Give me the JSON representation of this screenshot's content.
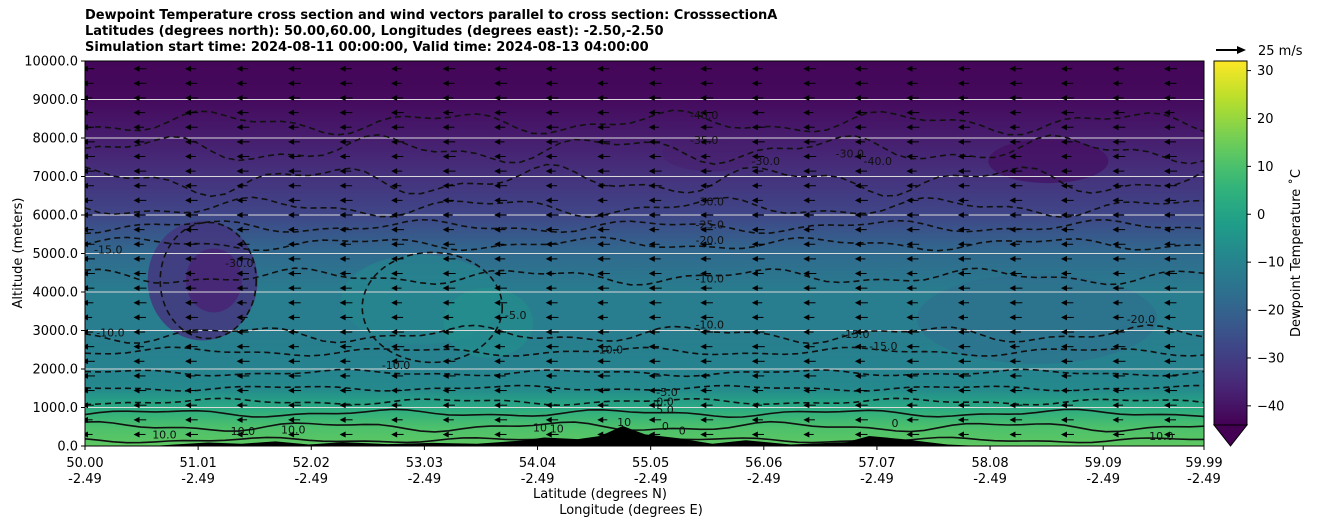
{
  "title_lines": [
    "Dewpoint Temperature cross section and wind vectors parallel to cross section: CrosssectionA",
    "Latitudes (degrees north): 50.00,60.00, Longitudes (degrees east): -2.50,-2.50",
    "Simulation start time: 2024-08-11 00:00:00, Valid time: 2024-08-13 04:00:00"
  ],
  "chart_data": {
    "type": "heatmap",
    "subtype": "filled contour cross section with contour lines and wind vectors",
    "ylabel": "Altitude (meters)",
    "xlabel_lines": [
      "Latitude (degrees N)",
      "Longitude (degrees E)"
    ],
    "ylim": [
      0,
      10000
    ],
    "y_ticks": [
      "0.0",
      "1000.0",
      "2000.0",
      "3000.0",
      "4000.0",
      "5000.0",
      "6000.0",
      "7000.0",
      "8000.0",
      "9000.0",
      "10000.0"
    ],
    "y_tick_values": [
      0,
      1000,
      2000,
      3000,
      4000,
      5000,
      6000,
      7000,
      8000,
      9000,
      10000
    ],
    "xlim": [
      50.0,
      59.99
    ],
    "x_ticks": [
      {
        "lat": "50.00",
        "lon": "-2.49",
        "value": 50.0
      },
      {
        "lat": "51.01",
        "lon": "-2.49",
        "value": 51.01
      },
      {
        "lat": "52.02",
        "lon": "-2.49",
        "value": 52.02
      },
      {
        "lat": "53.03",
        "lon": "-2.49",
        "value": 53.03
      },
      {
        "lat": "54.04",
        "lon": "-2.49",
        "value": 54.04
      },
      {
        "lat": "55.05",
        "lon": "-2.49",
        "value": 55.05
      },
      {
        "lat": "56.06",
        "lon": "-2.49",
        "value": 56.06
      },
      {
        "lat": "57.07",
        "lon": "-2.49",
        "value": 57.07
      },
      {
        "lat": "58.08",
        "lon": "-2.49",
        "value": 58.08
      },
      {
        "lat": "59.09",
        "lon": "-2.49",
        "value": 59.09
      },
      {
        "lat": "59.99",
        "lon": "-2.49",
        "value": 59.99
      }
    ],
    "horizontal_grid": true,
    "colorbar": {
      "label": "Dewpoint Temperature $^\\circ$C",
      "label_text": "Dewpoint Temperature ˚C",
      "range": [
        -44,
        32
      ],
      "ticks": [
        "30",
        "20",
        "10",
        "0",
        "−10",
        "−20",
        "−30",
        "−40"
      ],
      "tick_values": [
        30,
        20,
        10,
        0,
        -10,
        -20,
        -30,
        -40
      ],
      "colormap": "viridis",
      "extend": "min"
    },
    "wind_key": {
      "label": "25 m/s",
      "speed": 25
    },
    "dewpoint_profile": {
      "description": "approximate dewpoint (degrees C) by altitude band across the section",
      "altitude_m": [
        0,
        500,
        1000,
        1500,
        2000,
        3000,
        4000,
        5000,
        6000,
        7000,
        8000,
        9000,
        10000
      ],
      "dewpoint_c": [
        13,
        10,
        2,
        -8,
        -10,
        -12,
        -12,
        -18,
        -28,
        -33,
        -38,
        -42,
        -43
      ]
    },
    "contour_labels": [
      {
        "text": "-40.0",
        "lat": 55.4,
        "alt": 8500
      },
      {
        "text": "-35.0",
        "lat": 55.4,
        "alt": 7850
      },
      {
        "text": "-40.0",
        "lat": 56.95,
        "alt": 7300
      },
      {
        "text": "-30.0",
        "lat": 56.7,
        "alt": 7500
      },
      {
        "text": "-30.0",
        "lat": 55.95,
        "alt": 7300
      },
      {
        "text": "-30.0",
        "lat": 55.45,
        "alt": 6250
      },
      {
        "text": "-25.0",
        "lat": 55.45,
        "alt": 5650
      },
      {
        "text": "-20.0",
        "lat": 55.45,
        "alt": 5250
      },
      {
        "text": "-15.0",
        "lat": 50.08,
        "alt": 5000
      },
      {
        "text": "-30.0",
        "lat": 51.25,
        "alt": 4650
      },
      {
        "text": "-10.0",
        "lat": 55.45,
        "alt": 4250
      },
      {
        "text": "-5.0",
        "lat": 53.75,
        "alt": 3300
      },
      {
        "text": "-10.0",
        "lat": 55.45,
        "alt": 3050
      },
      {
        "text": "-10.0",
        "lat": 50.1,
        "alt": 2850
      },
      {
        "text": "-10.0",
        "lat": 54.55,
        "alt": 2400
      },
      {
        "text": "-10.0",
        "lat": 52.65,
        "alt": 2000
      },
      {
        "text": "-15.0",
        "lat": 56.75,
        "alt": 2800
      },
      {
        "text": "-15.0",
        "lat": 57.0,
        "alt": 2500
      },
      {
        "text": "-20.0",
        "lat": 59.3,
        "alt": 3200
      },
      {
        "text": "-5.0",
        "lat": 55.1,
        "alt": 1300
      },
      {
        "text": "0.0",
        "lat": 55.1,
        "alt": 1050
      },
      {
        "text": "5.0",
        "lat": 55.1,
        "alt": 850
      },
      {
        "text": "10.0",
        "lat": 50.6,
        "alt": 200
      },
      {
        "text": "10.0",
        "lat": 51.3,
        "alt": 280
      },
      {
        "text": "10.0",
        "lat": 51.75,
        "alt": 320
      },
      {
        "text": "10",
        "lat": 54.0,
        "alt": 380
      },
      {
        "text": "10",
        "lat": 54.15,
        "alt": 350
      },
      {
        "text": "10",
        "lat": 54.75,
        "alt": 520
      },
      {
        "text": "0",
        "lat": 55.15,
        "alt": 420
      },
      {
        "text": "0",
        "lat": 55.3,
        "alt": 300
      },
      {
        "text": "0",
        "lat": 57.2,
        "alt": 500
      },
      {
        "text": "10.0",
        "lat": 59.5,
        "alt": 150
      }
    ],
    "wind_vectors": {
      "direction": "toward decreasing latitude (pointing left)",
      "typical_speed_ms": 10
    }
  }
}
